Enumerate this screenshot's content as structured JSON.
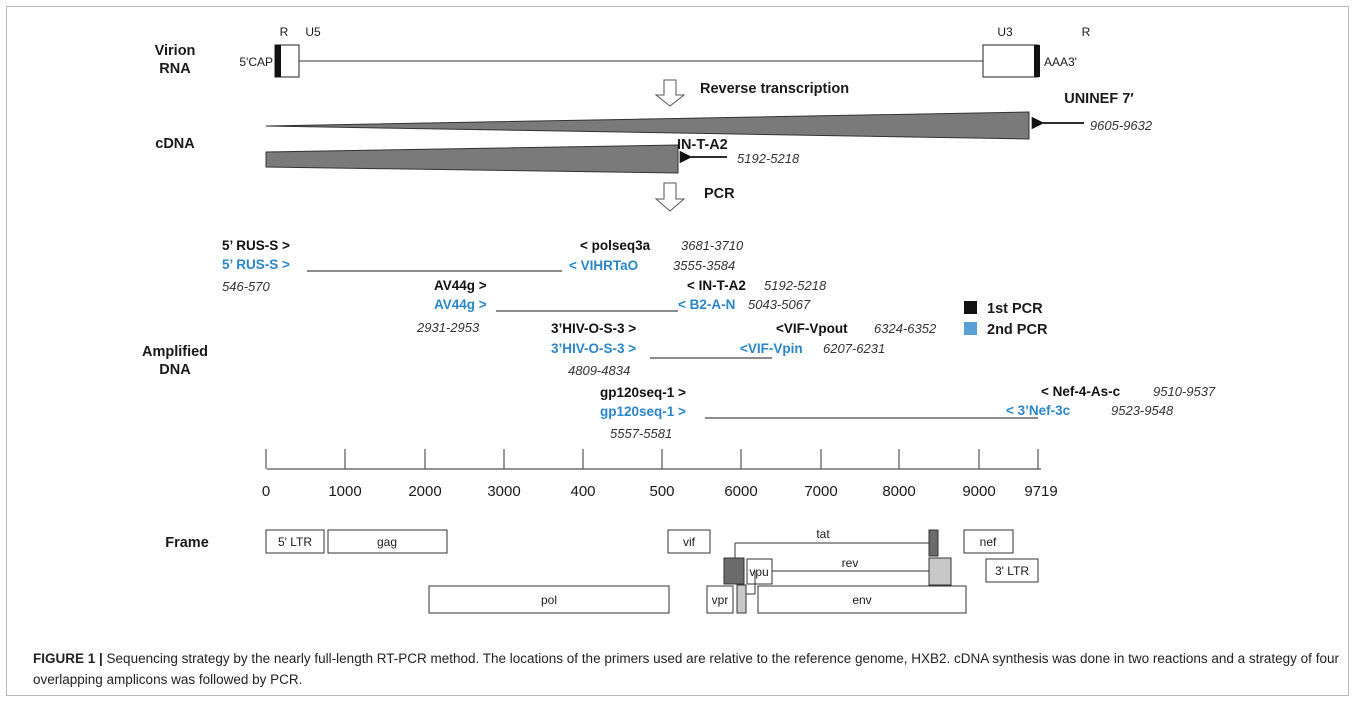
{
  "sections": {
    "virion_line1": "Virion",
    "virion_line2": "RNA",
    "cdna": "cDNA",
    "amplified_line1": "Amplified",
    "amplified_line2": "DNA",
    "frame": "Frame"
  },
  "virion": {
    "r_left": "R",
    "u5": "U5",
    "cap5": "5'CAP",
    "u3": "U3",
    "r_right": "R",
    "aaa3": "AAA3'"
  },
  "steps": {
    "reverse_transcription": "Reverse transcription",
    "pcr": "PCR"
  },
  "cdna_primers": {
    "uninef": "UNINEF 7′",
    "uninef_range": "9605-9632",
    "intA2": "IN-T-A2",
    "intA2_range": "5192-5218"
  },
  "legend": {
    "first": "1st PCR",
    "second": "2nd PCR",
    "first_color": "#111111",
    "second_color": "#5aa0d6"
  },
  "amplicons": {
    "a1": {
      "fwd1": "5’ RUS-S >",
      "fwd2": "5’ RUS-S >",
      "fwd_range": "546-570",
      "rev1": "< polseq3a",
      "rev1_range": "3681-3710",
      "rev2": "< VIHRTaO",
      "rev2_range": "3555-3584"
    },
    "a2": {
      "fwd1": "AV44g  >",
      "fwd2": "AV44g  >",
      "fwd_range": "2931-2953",
      "rev1": "< IN-T-A2",
      "rev1_range": "5192-5218",
      "rev2": "< B2-A-N",
      "rev2_range": "5043-5067"
    },
    "a3": {
      "fwd1": "3’HIV-O-S-3 >",
      "fwd2": "3’HIV-O-S-3 >",
      "fwd_range": "4809-4834",
      "rev1": "<VIF-Vpout",
      "rev1_range": "6324-6352",
      "rev2": "<VIF-Vpin",
      "rev2_range": "6207-6231"
    },
    "a4": {
      "fwd1": "gp120seq-1 >",
      "fwd2": "gp120seq-1 >",
      "fwd_range": "5557-5581",
      "rev1": "< Nef-4-As-c",
      "rev1_range": "9510-9537",
      "rev2": "< 3’Nef-3c",
      "rev2_range": "9523-9548"
    }
  },
  "axis": {
    "ticks": [
      "0",
      "1000",
      "2000",
      "3000",
      "400",
      "500",
      "6000",
      "7000",
      "8000",
      "9000",
      "9719"
    ]
  },
  "genes": {
    "ltr5": "5' LTR",
    "gag": "gag",
    "pol": "pol",
    "vif": "vif",
    "vpr": "vpr",
    "vpu": "vpu",
    "tat": "tat",
    "rev": "rev",
    "env": "env",
    "nef": "nef",
    "ltr3": "3' LTR"
  },
  "caption": {
    "label": "FIGURE 1 |",
    "text": " Sequencing strategy by the nearly full-length RT-PCR method. The locations of the primers used are relative to the reference genome, HXB2. cDNA synthesis was done in two reactions and a strategy of four overlapping amplicons was followed by PCR."
  }
}
